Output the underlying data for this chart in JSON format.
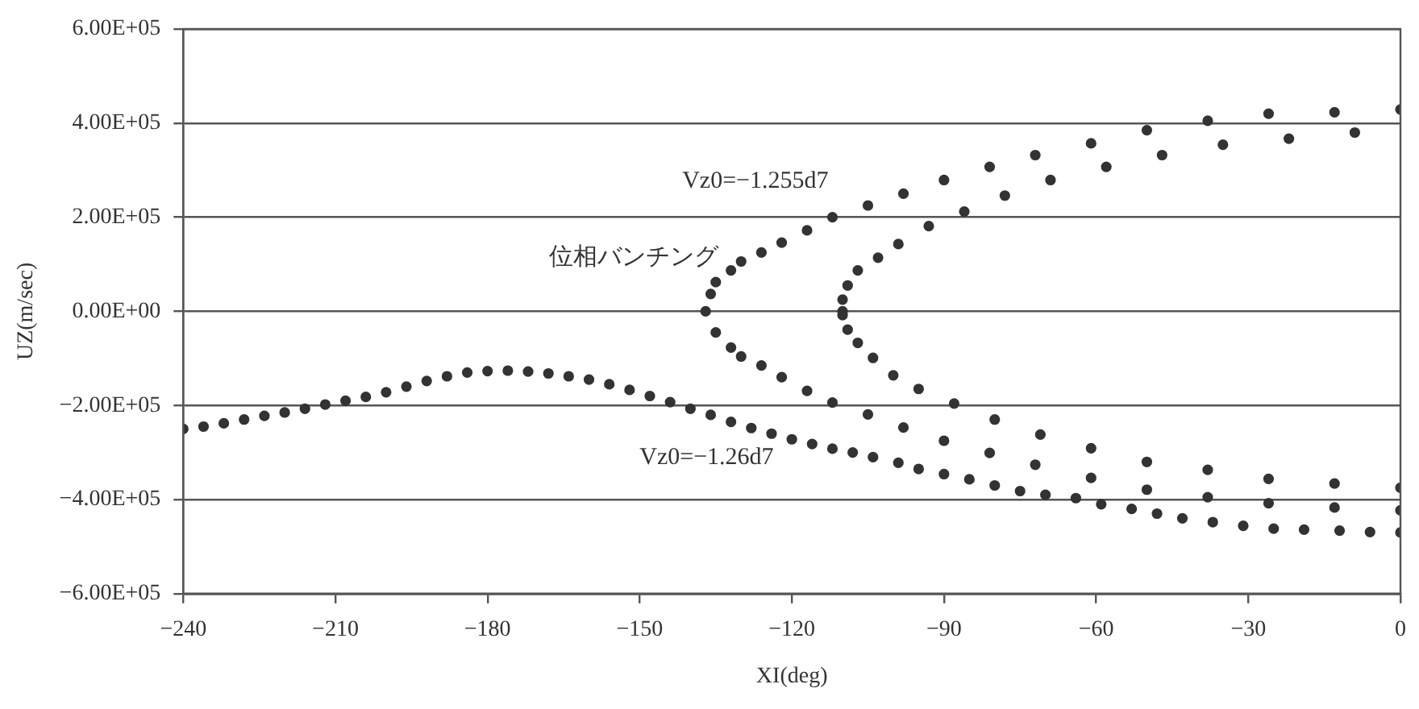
{
  "chart_data": {
    "type": "scatter",
    "xlabel": "XI(deg)",
    "ylabel": "UZ(m/sec)",
    "xlim": [
      -240,
      0
    ],
    "xticks": [
      {
        "value": -240,
        "label": "−240"
      },
      {
        "value": -210,
        "label": "−210"
      },
      {
        "value": -180,
        "label": "−180"
      },
      {
        "value": -150,
        "label": "−150"
      },
      {
        "value": -120,
        "label": "−120"
      },
      {
        "value": -90,
        "label": "−90"
      },
      {
        "value": -60,
        "label": "−60"
      },
      {
        "value": -30,
        "label": "−30"
      },
      0
    ],
    "ylim": [
      -600000,
      600000
    ],
    "yticks": [
      {
        "value": -600000,
        "label": "−6.00E+05"
      },
      {
        "value": -400000,
        "label": "−4.00E+05"
      },
      {
        "value": -200000,
        "label": "−2.00E+05"
      },
      {
        "value": 0,
        "label": "0.00E+00"
      },
      {
        "value": 200000,
        "label": "2.00E+05"
      },
      {
        "value": 400000,
        "label": "4.00E+05"
      },
      {
        "value": 600000,
        "label": "6.00E+05"
      }
    ],
    "grid": "y",
    "legend": false,
    "marker": "circle",
    "annotations": [
      "Vz0=−1.255d7",
      "位相バンチング",
      "Vz0=−1.26d7"
    ],
    "series": [
      {
        "color": "#333333",
        "x": [
          -240,
          -236,
          -232,
          -228,
          -224,
          -220,
          -216,
          -212,
          -208,
          -204,
          -200,
          -196,
          -192,
          -188,
          -184,
          -180,
          -176,
          -172,
          -168,
          -164,
          -160,
          -156,
          -152,
          -148,
          -144,
          -140,
          -136,
          -132,
          -128,
          -124,
          -120,
          -116,
          -112,
          -108,
          -104,
          -99,
          -95,
          -90,
          -85,
          -80,
          -75,
          -70,
          -64,
          -59,
          -53,
          -48,
          -43,
          -37,
          -31,
          -25,
          -19,
          -12,
          -6,
          0
        ],
        "values": [
          -250000,
          -245000,
          -238000,
          -230000,
          -222000,
          -215000,
          -207000,
          -198000,
          -190000,
          -182000,
          -172000,
          -160000,
          -148000,
          -138000,
          -130000,
          -127000,
          -126000,
          -128000,
          -132000,
          -138000,
          -145000,
          -155000,
          -167000,
          -180000,
          -193000,
          -207000,
          -220000,
          -235000,
          -248000,
          -260000,
          -272000,
          -282000,
          -292000,
          -300000,
          -310000,
          -322000,
          -335000,
          -346000,
          -357000,
          -370000,
          -382000,
          -390000,
          -397000,
          -410000,
          -420000,
          -430000,
          -440000,
          -448000,
          -456000,
          -462000,
          -464000,
          -466000,
          -469000,
          -470000
        ]
      },
      {
        "color": "#333333",
        "x": [
          -137,
          -136,
          -135,
          -132,
          -130,
          -126,
          -122,
          -117,
          -112,
          -105,
          -98,
          -90,
          -81,
          -72,
          -61,
          -50,
          -38,
          -26,
          -13,
          0,
          -135,
          -132,
          -130,
          -126,
          -122,
          -117,
          -112,
          -105,
          -98,
          -90,
          -81,
          -72,
          -61,
          -50,
          -38,
          -26,
          -13,
          0
        ],
        "values": [
          0,
          37000,
          62000,
          87000,
          106000,
          125000,
          146000,
          172000,
          200000,
          225000,
          250000,
          279000,
          307000,
          332000,
          357000,
          385000,
          405000,
          420000,
          423000,
          429000,
          -45000,
          -77000,
          -96000,
          -115000,
          -140000,
          -169000,
          -194000,
          -219000,
          -247000,
          -275000,
          -301000,
          -326000,
          -354000,
          -379000,
          -395000,
          -408000,
          -417000,
          -423000
        ]
      },
      {
        "color": "#333333",
        "x": [
          -110,
          -110,
          -109,
          -107,
          -103,
          -99,
          -93,
          -86,
          -78,
          -69,
          -58,
          -47,
          -35,
          -22,
          -9,
          -110,
          -109,
          -107,
          -104,
          -100,
          -95,
          -88,
          -80,
          -71,
          -61,
          -50,
          -38,
          -26,
          -13,
          0
        ],
        "values": [
          0,
          25000,
          55000,
          87000,
          114000,
          143000,
          181000,
          212000,
          246000,
          279000,
          307000,
          332000,
          354000,
          367000,
          380000,
          -8000,
          -39000,
          -67000,
          -99000,
          -136000,
          -165000,
          -196000,
          -230000,
          -262000,
          -291000,
          -320000,
          -337000,
          -356000,
          -366000,
          -375000
        ]
      }
    ]
  }
}
